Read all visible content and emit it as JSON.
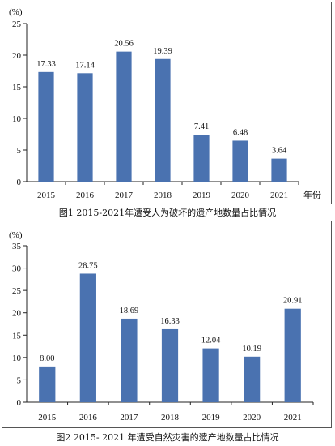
{
  "chart_data": [
    {
      "type": "bar",
      "caption": "图1 2015-2021年遭受人为破坏的遗产地数量占比情况",
      "categories": [
        "2015",
        "2016",
        "2017",
        "2018",
        "2019",
        "2020",
        "2021"
      ],
      "values": [
        17.33,
        17.14,
        20.56,
        19.39,
        7.41,
        6.48,
        3.64
      ],
      "value_labels": [
        "17.33",
        "17.14",
        "20.56",
        "19.39",
        "7.41",
        "6.48",
        "3.64"
      ],
      "ylabel": "(%)",
      "xlabel": "年份",
      "ylim": [
        0,
        25
      ],
      "yticks": [
        0,
        5,
        10,
        15,
        20,
        25
      ],
      "grid": false,
      "bar_color": "#4a72b0"
    },
    {
      "type": "bar",
      "caption": "图2 2015- 2021 年遭受自然灾害的遗产地数量占比情况",
      "categories": [
        "2015",
        "2016",
        "2017",
        "2018",
        "2019",
        "2020",
        "2021"
      ],
      "values": [
        8.0,
        28.75,
        18.69,
        16.33,
        12.04,
        10.19,
        20.91
      ],
      "value_labels": [
        "8.00",
        "28.75",
        "18.69",
        "16.33",
        "12.04",
        "10.19",
        "20.91"
      ],
      "ylabel": "(%)",
      "xlabel": "",
      "ylim": [
        0,
        35
      ],
      "yticks": [
        0,
        5,
        10,
        15,
        20,
        25,
        30,
        35
      ],
      "grid": false,
      "bar_color": "#4a72b0"
    }
  ]
}
